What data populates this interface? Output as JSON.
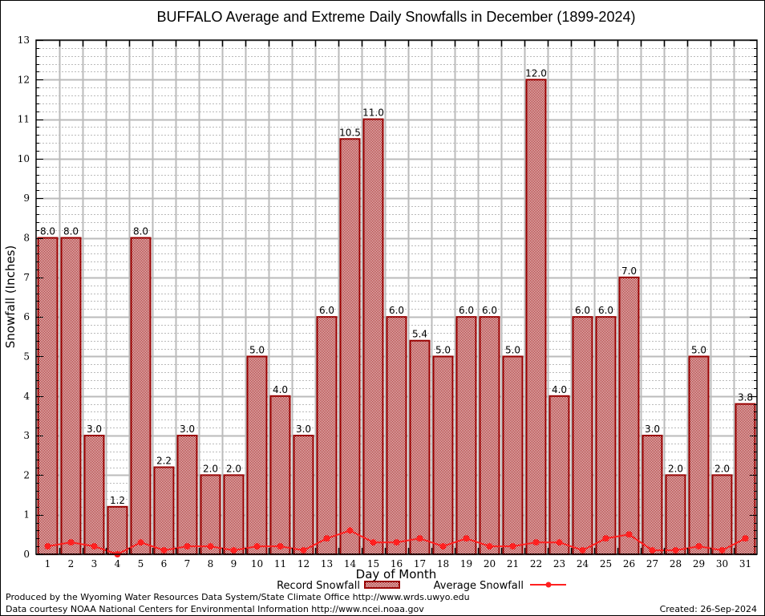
{
  "chart_data": {
    "type": "bar",
    "title": "BUFFALO Average and Extreme Daily Snowfalls in December (1899-2024)",
    "xlabel": "Day of Month",
    "ylabel": "Snowfall (Inches)",
    "ylim": [
      0,
      13
    ],
    "yticks": [
      "0",
      "1",
      "2",
      "3",
      "4",
      "5",
      "6",
      "7",
      "8",
      "9",
      "10",
      "11",
      "12",
      "13"
    ],
    "grid": true,
    "categories": [
      "1",
      "2",
      "3",
      "4",
      "5",
      "6",
      "7",
      "8",
      "9",
      "10",
      "11",
      "12",
      "13",
      "14",
      "15",
      "16",
      "17",
      "18",
      "19",
      "20",
      "21",
      "22",
      "23",
      "24",
      "25",
      "26",
      "27",
      "28",
      "29",
      "30",
      "31"
    ],
    "series": [
      {
        "name": "Record Snowfall",
        "kind": "bar",
        "values": [
          8.0,
          8.0,
          3.0,
          1.2,
          8.0,
          2.2,
          3.0,
          2.0,
          2.0,
          5.0,
          4.0,
          3.0,
          6.0,
          10.5,
          11.0,
          6.0,
          5.4,
          5.0,
          6.0,
          6.0,
          5.0,
          12.0,
          4.0,
          6.0,
          6.0,
          7.0,
          3.0,
          2.0,
          5.0,
          2.0,
          3.8
        ],
        "labels": [
          "8.0",
          "8.0",
          "3.0",
          "1.2",
          "8.0",
          "2.2",
          "3.0",
          "2.0",
          "2.0",
          "5.0",
          "4.0",
          "3.0",
          "6.0",
          "10.5",
          "11.0",
          "6.0",
          "5.4",
          "5.0",
          "6.0",
          "6.0",
          "5.0",
          "12.0",
          "4.0",
          "6.0",
          "6.0",
          "7.0",
          "3.0",
          "2.0",
          "5.0",
          "2.0",
          "3.8"
        ],
        "color": "#990000"
      },
      {
        "name": "Average Snowfall",
        "kind": "line",
        "values": [
          0.2,
          0.3,
          0.2,
          0.0,
          0.3,
          0.1,
          0.2,
          0.2,
          0.1,
          0.2,
          0.2,
          0.1,
          0.4,
          0.6,
          0.3,
          0.3,
          0.4,
          0.2,
          0.4,
          0.2,
          0.2,
          0.3,
          0.3,
          0.1,
          0.4,
          0.5,
          0.1,
          0.1,
          0.2,
          0.1,
          0.4
        ],
        "color": "#ff2020"
      }
    ],
    "legend": "bottom-center"
  },
  "footer": {
    "line1": "Produced by the Wyoming Water Resources Data System/State Climate Office http://www.wrds.uwyo.edu",
    "line2": "Data courtesy NOAA National Centers for Environmental Information http://www.ncei.noaa.gov",
    "created": "Created: 26-Sep-2024"
  }
}
